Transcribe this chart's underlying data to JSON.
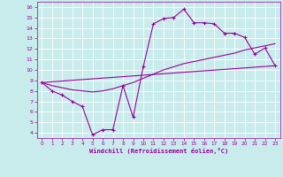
{
  "xlabel": "Windchill (Refroidissement éolien,°C)",
  "background_color": "#c8ecec",
  "line_color": "#990099",
  "grid_color": "#ffffff",
  "x_ticks": [
    0,
    1,
    2,
    3,
    4,
    5,
    6,
    7,
    8,
    9,
    10,
    11,
    12,
    13,
    14,
    15,
    16,
    17,
    18,
    19,
    20,
    21,
    22,
    23
  ],
  "y_ticks": [
    4,
    5,
    6,
    7,
    8,
    9,
    10,
    11,
    12,
    13,
    14,
    15,
    16
  ],
  "ylim": [
    3.5,
    16.5
  ],
  "xlim": [
    -0.5,
    23.5
  ],
  "line1_x": [
    0,
    1,
    2,
    3,
    4,
    5,
    6,
    7,
    8,
    9,
    10,
    11,
    12,
    13,
    14,
    15,
    16,
    17,
    18,
    19,
    20,
    21,
    22,
    23
  ],
  "line1_y": [
    8.8,
    8.0,
    7.6,
    7.0,
    6.5,
    3.8,
    4.3,
    4.3,
    8.5,
    5.5,
    10.3,
    14.4,
    14.9,
    15.0,
    15.8,
    14.5,
    14.5,
    14.4,
    13.5,
    13.5,
    13.1,
    11.5,
    12.1,
    10.4
  ],
  "line2_x": [
    0,
    1,
    2,
    3,
    4,
    5,
    6,
    7,
    8,
    9,
    10,
    11,
    12,
    13,
    14,
    15,
    16,
    17,
    18,
    19,
    20,
    21,
    22,
    23
  ],
  "line2_y": [
    8.8,
    8.5,
    8.3,
    8.1,
    8.0,
    7.9,
    8.0,
    8.2,
    8.5,
    8.8,
    9.2,
    9.6,
    10.0,
    10.3,
    10.6,
    10.8,
    11.0,
    11.2,
    11.4,
    11.6,
    11.9,
    12.1,
    12.3,
    12.5
  ],
  "line3_x": [
    0,
    23
  ],
  "line3_y": [
    8.8,
    10.4
  ]
}
